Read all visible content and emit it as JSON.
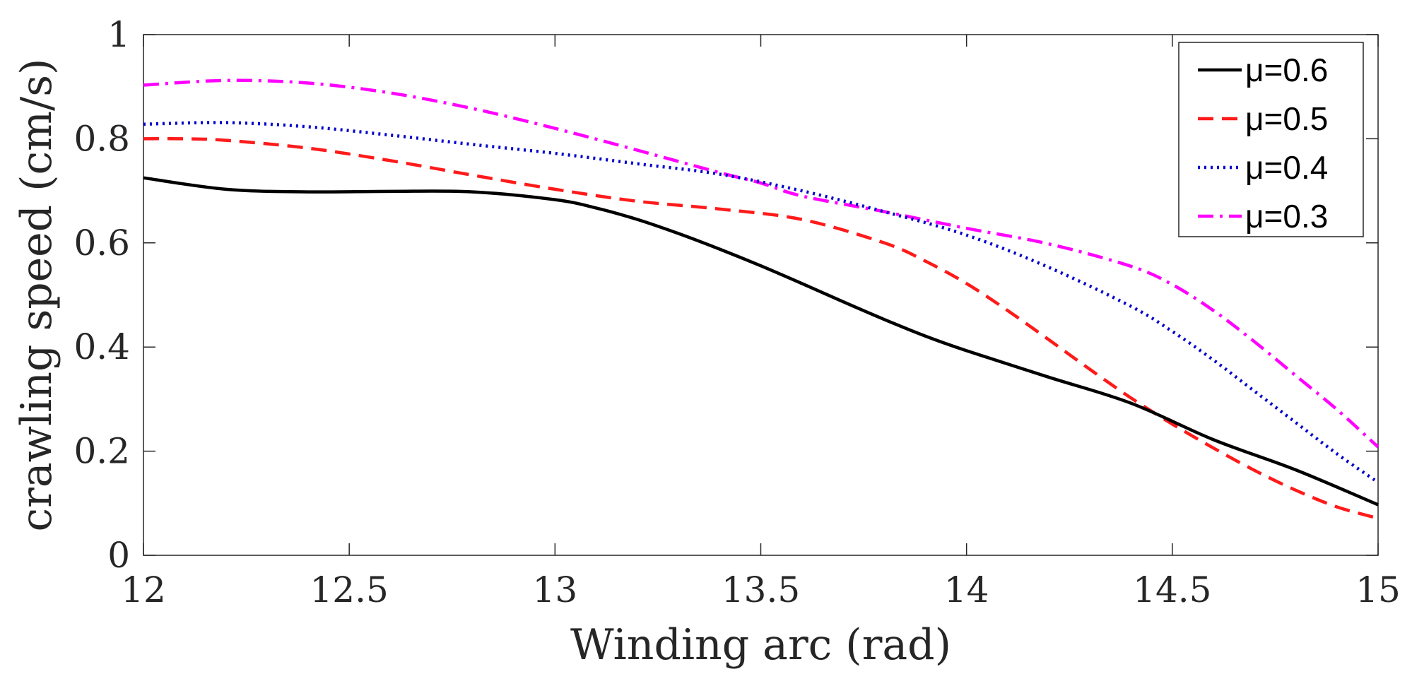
{
  "chart_data": {
    "type": "line",
    "title": "",
    "xlabel": "Winding arc (rad)",
    "ylabel": "crawling speed (cm/s)",
    "xlim": [
      12,
      15
    ],
    "ylim": [
      0,
      1
    ],
    "xticks": [
      12,
      12.5,
      13,
      13.5,
      14,
      14.5,
      15
    ],
    "xtick_labels": [
      "12",
      "12.5",
      "13",
      "13.5",
      "14",
      "14.5",
      "15"
    ],
    "yticks": [
      0,
      0.2,
      0.4,
      0.6,
      0.8,
      1
    ],
    "ytick_labels": [
      "0",
      "0.2",
      "0.4",
      "0.6",
      "0.8",
      "1"
    ],
    "grid": false,
    "legend_position": "top-right",
    "series": [
      {
        "name": "μ=0.6",
        "color": "#000000",
        "style": "solid",
        "x": [
          12,
          12.2,
          12.4,
          12.6,
          12.8,
          13.0,
          13.1,
          13.2,
          13.3,
          13.4,
          13.5,
          13.6,
          13.7,
          13.8,
          13.9,
          14.0,
          14.2,
          14.4,
          14.6,
          14.8,
          15.0
        ],
        "y": [
          0.725,
          0.703,
          0.698,
          0.699,
          0.698,
          0.683,
          0.667,
          0.645,
          0.618,
          0.588,
          0.556,
          0.522,
          0.487,
          0.453,
          0.421,
          0.393,
          0.342,
          0.292,
          0.222,
          0.164,
          0.097
        ]
      },
      {
        "name": "μ=0.5",
        "color": "#ff1a1a",
        "style": "dashed",
        "x": [
          12,
          12.1,
          12.2,
          12.4,
          12.6,
          12.8,
          13.0,
          13.2,
          13.4,
          13.6,
          13.8,
          13.9,
          14.0,
          14.1,
          14.2,
          14.3,
          14.4,
          14.5,
          14.6,
          14.7,
          14.8,
          14.9,
          15.0
        ],
        "y": [
          0.8,
          0.8,
          0.797,
          0.782,
          0.758,
          0.73,
          0.703,
          0.68,
          0.665,
          0.645,
          0.6,
          0.565,
          0.522,
          0.47,
          0.414,
          0.357,
          0.302,
          0.252,
          0.206,
          0.163,
          0.125,
          0.093,
          0.071
        ]
      },
      {
        "name": "μ=0.4",
        "color": "#0000cc",
        "style": "dotted",
        "x": [
          12,
          12.2,
          12.4,
          12.6,
          12.8,
          13.0,
          13.2,
          13.4,
          13.6,
          13.8,
          14.0,
          14.2,
          14.4,
          14.5,
          14.6,
          14.7,
          14.8,
          14.9,
          15.0
        ],
        "y": [
          0.828,
          0.831,
          0.823,
          0.807,
          0.789,
          0.772,
          0.752,
          0.732,
          0.7,
          0.66,
          0.615,
          0.553,
          0.478,
          0.43,
          0.375,
          0.315,
          0.255,
          0.195,
          0.14
        ]
      },
      {
        "name": "μ=0.3",
        "color": "#ff00ff",
        "style": "dashdot",
        "x": [
          12,
          12.2,
          12.4,
          12.6,
          12.8,
          13.0,
          13.2,
          13.4,
          13.5,
          13.6,
          13.8,
          14.0,
          14.2,
          14.4,
          14.5,
          14.6,
          14.7,
          14.8,
          14.9,
          15.0
        ],
        "y": [
          0.903,
          0.912,
          0.907,
          0.888,
          0.858,
          0.82,
          0.778,
          0.735,
          0.715,
          0.69,
          0.66,
          0.628,
          0.598,
          0.555,
          0.52,
          0.47,
          0.41,
          0.345,
          0.28,
          0.208
        ]
      }
    ]
  }
}
